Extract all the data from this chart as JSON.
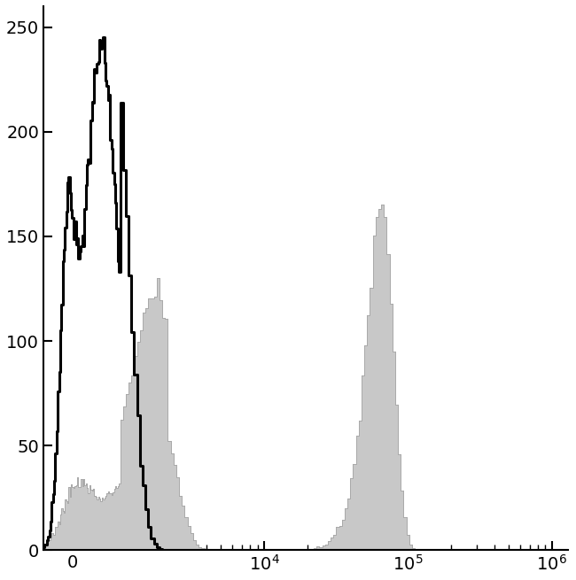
{
  "ylim": [
    0,
    260
  ],
  "yticks": [
    0,
    50,
    100,
    150,
    200,
    250
  ],
  "bg_color": "#ffffff",
  "black_hist_color": "#000000",
  "gray_hist_color": "#c8c8c8",
  "gray_hist_edge_color": "#aaaaaa",
  "black_linewidth": 2.2,
  "gray_linewidth": 0.7,
  "figsize": [
    6.5,
    6.55
  ],
  "dpi": 100,
  "linthresh": 1000,
  "linscale": 0.3,
  "xlim_low": -600,
  "xlim_high": 1300000
}
